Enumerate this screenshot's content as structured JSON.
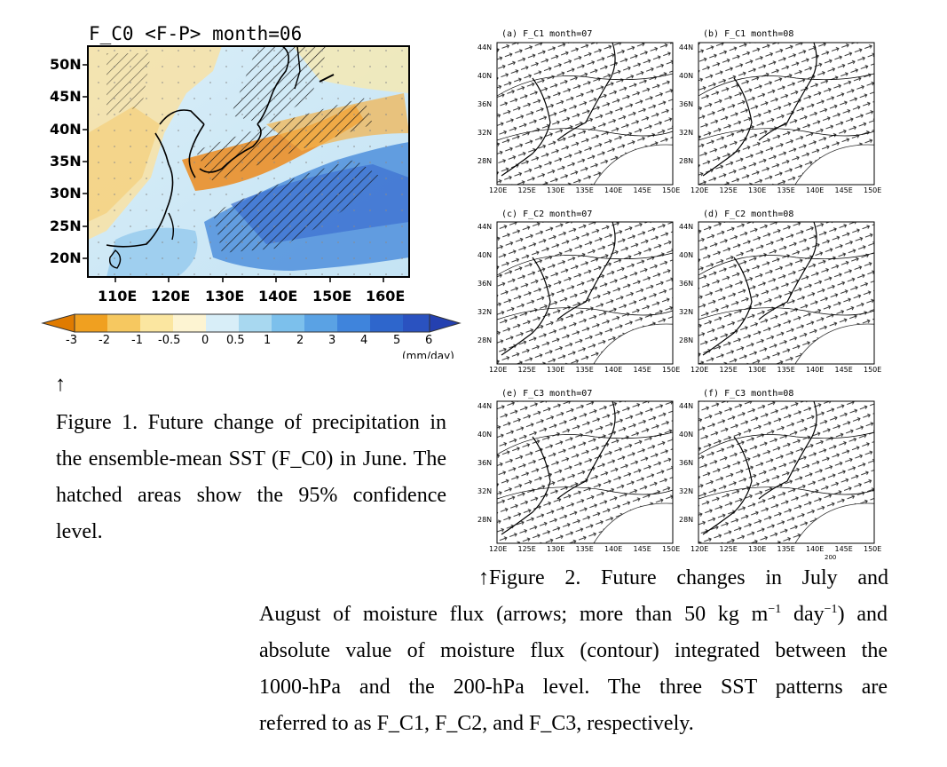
{
  "figure1": {
    "title": "F_C0 <F-P> month=06",
    "lat_labels": [
      "50N",
      "45N",
      "40N",
      "35N",
      "30N",
      "25N",
      "20N"
    ],
    "lon_labels": [
      "110E",
      "120E",
      "130E",
      "140E",
      "150E",
      "160E"
    ],
    "colorbar": {
      "ticks": [
        "-3",
        "-2",
        "-1",
        "-0.5",
        "0",
        "0.5",
        "1",
        "2",
        "3",
        "4",
        "5",
        "6"
      ],
      "unit": "(mm/day)",
      "colors": [
        "#e07b00",
        "#f0a020",
        "#f6c860",
        "#fbe6a0",
        "#fdf4d2",
        "#d8eef8",
        "#a8d8f0",
        "#7cc0ec",
        "#5aa2e4",
        "#3f84dc",
        "#2e66cc",
        "#2a52c0",
        "#2440b0"
      ]
    },
    "arrow_mark": "↑",
    "caption": "Figure 1. Future change of precipitation in the ensemble-mean SST (F_C0) in June. The hatched areas show the 95% confidence level."
  },
  "figure2": {
    "panels": [
      {
        "title": "(a) F_C1 month=07"
      },
      {
        "title": "(b) F_C1 month=08"
      },
      {
        "title": "(c) F_C2 month=07"
      },
      {
        "title": "(d) F_C2 month=08"
      },
      {
        "title": "(e) F_C3 month=07"
      },
      {
        "title": "(f) F_C3 month=08"
      }
    ],
    "lat_labels": [
      "44N",
      "40N",
      "36N",
      "32N",
      "28N"
    ],
    "lon_labels": [
      "120E",
      "125E",
      "130E",
      "135E",
      "140E",
      "145E",
      "150E"
    ],
    "scale_label": "200",
    "caption_line1": "↑Figure 2. Future changes in July and",
    "caption_line2_a": "August of moisture flux (arrows; more than 50 kg m",
    "caption_line2_sup1": "−1",
    "caption_line2_b": " day",
    "caption_line2_sup2": "−1",
    "caption_line2_c": ") and",
    "caption_line3": "absolute value of moisture flux (contour) integrated between the",
    "caption_line4": "1000-hPa and the 200-hPa level. The three SST patterns are",
    "caption_line5": "referred to as F_C1, F_C2, and F_C3, respectively."
  }
}
